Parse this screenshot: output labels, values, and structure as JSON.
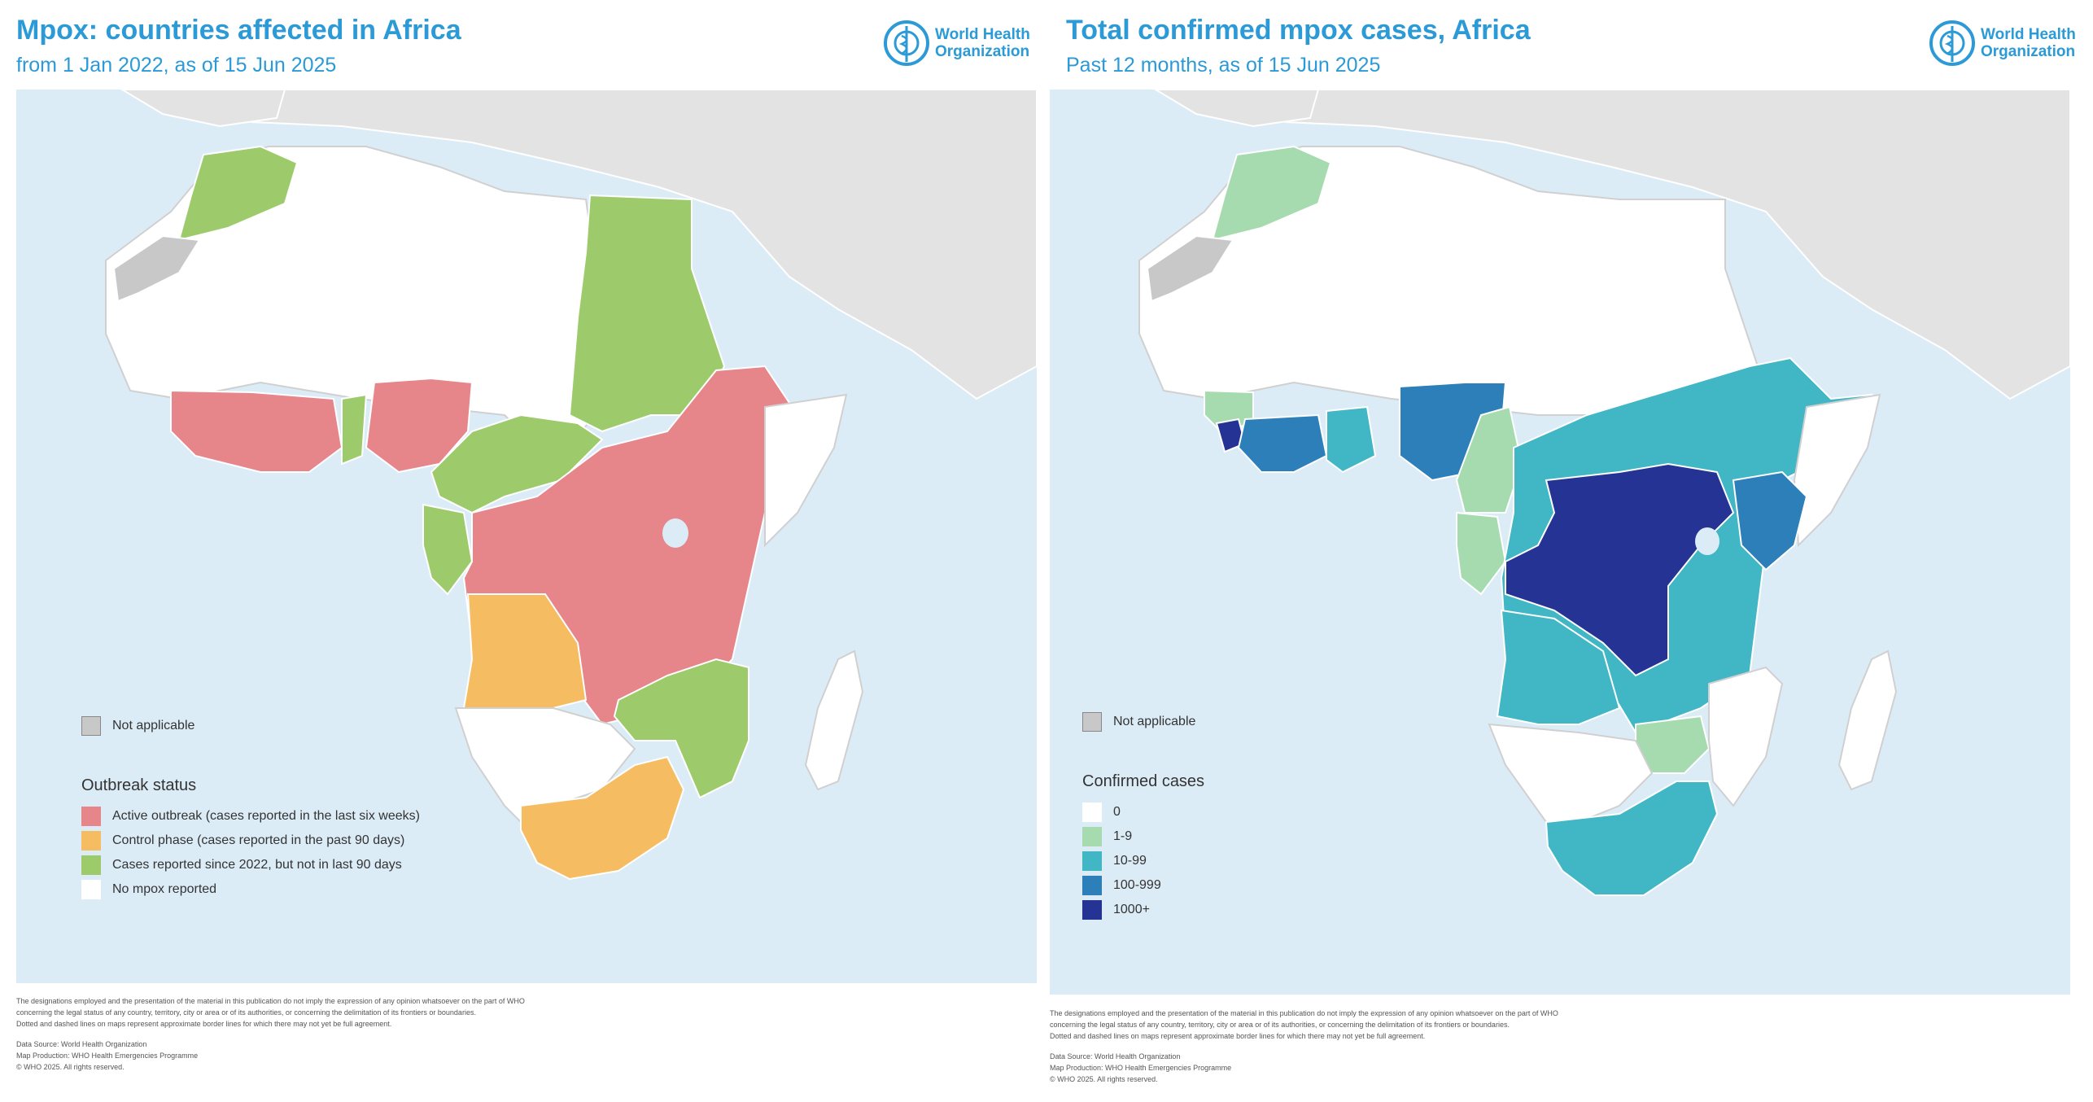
{
  "left": {
    "title": "Mpox: countries affected in Africa",
    "subtitle": "from 1 Jan 2022, as of 15 Jun 2025",
    "logo": {
      "line1": "World Health",
      "line2": "Organization",
      "icon": "who-emblem-icon"
    },
    "legend": {
      "not_applicable": "Not applicable",
      "heading": "Outbreak status",
      "items": [
        {
          "label": "Active outbreak (cases reported in the last six weeks)",
          "color": "#e6858a"
        },
        {
          "label": "Control phase (cases reported in the past 90 days)",
          "color": "#f6bc62"
        },
        {
          "label": "Cases reported since 2022, but not in last 90 days",
          "color": "#9dcb6b"
        },
        {
          "label": "No mpox reported",
          "color": "#ffffff"
        }
      ]
    },
    "disclaimer": [
      "The designations employed and the presentation of the material in this publication do not imply the expression of any opinion whatsoever on the part of WHO",
      "concerning the legal status of any country, territory, city or area or of its authorities, or concerning the delimitation of its frontiers or boundaries.",
      "Dotted and dashed lines on maps represent approximate border lines for which there may not yet be full agreement."
    ],
    "credits": [
      "Data Source: World Health Organization",
      "Map Production: WHO Health Emergencies Programme",
      "© WHO 2025. All rights reserved."
    ]
  },
  "right": {
    "title": "Total confirmed mpox cases, Africa",
    "subtitle": "Past 12 months, as of 15 Jun 2025",
    "logo": {
      "line1": "World Health",
      "line2": "Organization",
      "icon": "who-emblem-icon"
    },
    "legend": {
      "not_applicable": "Not applicable",
      "heading": "Confirmed cases",
      "items": [
        {
          "label": "0",
          "color": "#ffffff"
        },
        {
          "label": "1-9",
          "color": "#a6dbb0"
        },
        {
          "label": "10-99",
          "color": "#41b6c4"
        },
        {
          "label": "100-999",
          "color": "#2c7fb8"
        },
        {
          "label": "1000+",
          "color": "#253494"
        }
      ]
    },
    "disclaimer": [
      "The designations employed and the presentation of the material in this publication do not imply the expression of any opinion whatsoever on the part of WHO",
      "concerning the legal status of any country, territory, city or area or of its authorities, or concerning the delimitation of its frontiers or boundaries.",
      "Dotted and dashed lines on maps represent approximate border lines for which there may not yet be full agreement."
    ],
    "credits": [
      "Data Source: World Health Organization",
      "Map Production: WHO Health Emergencies Programme",
      "© WHO 2025. All rights reserved."
    ]
  },
  "colors": {
    "title": "#2b9ad6",
    "ocean": "#dcecf7",
    "not_applicable": "#c8c8c8",
    "other_land": "#e3e3e3"
  }
}
